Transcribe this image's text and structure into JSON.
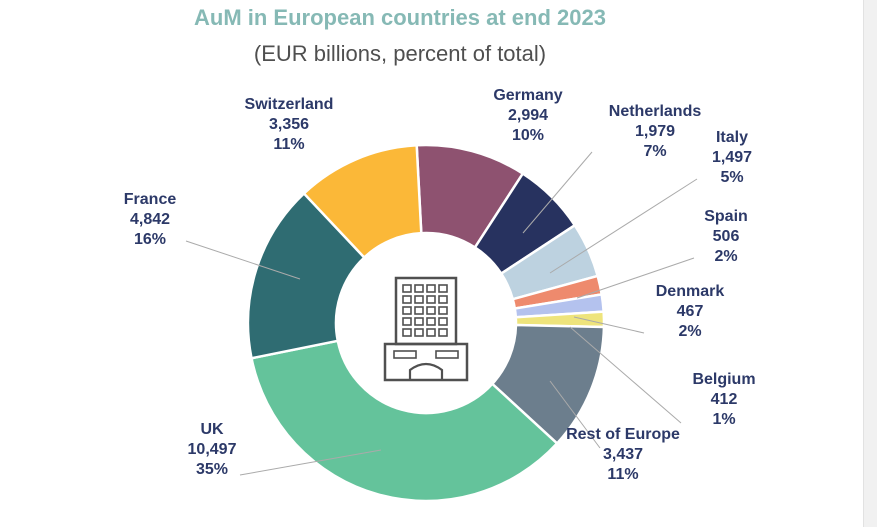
{
  "chart_data": {
    "type": "pie",
    "variant": "donut",
    "title": "AuM in European countries at end 2023",
    "subtitle": "(EUR billions, percent of total)",
    "slices": [
      {
        "name": "Germany",
        "value_label": "2,994",
        "value": 2994,
        "percent": "10%",
        "color": "#8e5270"
      },
      {
        "name": "Netherlands",
        "value_label": "1,979",
        "value": 1979,
        "percent": "7%",
        "color": "#27325f"
      },
      {
        "name": "Italy",
        "value_label": "1,497",
        "value": 1497,
        "percent": "5%",
        "color": "#bdd2e0"
      },
      {
        "name": "Spain",
        "value_label": "506",
        "value": 506,
        "percent": "2%",
        "color": "#ee8a6d"
      },
      {
        "name": "Denmark",
        "value_label": "467",
        "value": 467,
        "percent": "2%",
        "color": "#b4c2ee"
      },
      {
        "name": "Belgium",
        "value_label": "412",
        "value": 412,
        "percent": "1%",
        "color": "#eee47c"
      },
      {
        "name": "Rest of Europe",
        "value_label": "3,437",
        "value": 3437,
        "percent": "11%",
        "color": "#6c7e8d"
      },
      {
        "name": "UK",
        "value_label": "10,497",
        "value": 10497,
        "percent": "35%",
        "color": "#64c39b"
      },
      {
        "name": "France",
        "value_label": "4,842",
        "value": 4842,
        "percent": "16%",
        "color": "#2f6c72"
      },
      {
        "name": "Switzerland",
        "value_label": "3,356",
        "value": 3356,
        "percent": "11%",
        "color": "#fbb838"
      }
    ],
    "center_icon": "building-icon",
    "colors": {
      "title": "#86b9b5",
      "subtitle": "#4f4f4f",
      "labels": "#2c3968",
      "leaders": "#aaaaaa",
      "icon": "#505050"
    }
  }
}
